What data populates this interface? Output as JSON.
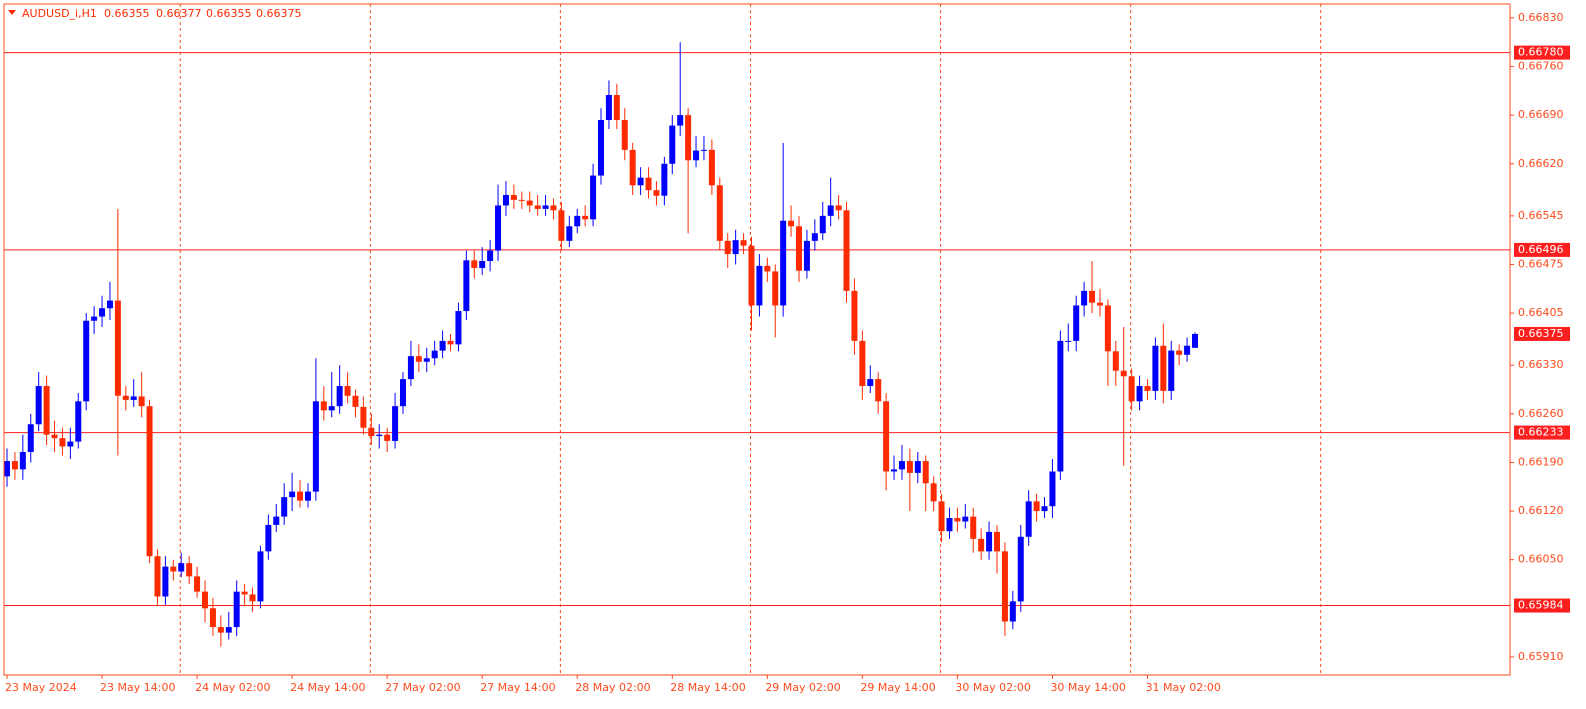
{
  "chart_data": {
    "type": "candlestick",
    "title": "AUDUSD_i,H1",
    "up_color": "#0000ff",
    "down_color": "#ff2a00",
    "frame_color": "#ff4a1a",
    "level_color": "#ff1e1e",
    "ylim": [
      0.65884,
      0.6685
    ],
    "yticks": [
      {
        "value": 0.6683,
        "label": "0.66830"
      },
      {
        "value": 0.6676,
        "label": "0.66760"
      },
      {
        "value": 0.6669,
        "label": "0.66690"
      },
      {
        "value": 0.6662,
        "label": "0.66620"
      },
      0.66545,
      0.66475,
      0.66405,
      {
        "value": 0.6633,
        "label": "0.66330"
      },
      {
        "value": 0.6626,
        "label": "0.66260"
      },
      {
        "value": 0.6619,
        "label": "0.66190"
      },
      {
        "value": 0.6612,
        "label": "0.66120"
      },
      {
        "value": 0.6605,
        "label": "0.66050"
      },
      {
        "value": 0.6591,
        "label": "0.65910"
      }
    ],
    "levels": [
      {
        "value": 0.6678,
        "label": "0.66780"
      },
      0.66496,
      0.66233,
      0.65984
    ],
    "xtick_labels": [
      "23 May 2024",
      "23 May 14:00",
      "24 May 02:00",
      "24 May 14:00",
      "27 May 02:00",
      "27 May 14:00",
      "28 May 02:00",
      "28 May 14:00",
      "29 May 02:00",
      "29 May 14:00",
      "30 May 02:00",
      "30 May 14:00",
      "31 May 02:00"
    ],
    "open": [
      0.6617,
      0.66192,
      0.6618,
      0.66205,
      0.66245,
      0.663,
      0.6623,
      0.66225,
      0.66213,
      0.6622,
      0.66278,
      0.66394,
      0.664,
      0.66412,
      0.66423,
      0.66286,
      0.6628,
      0.66285,
      0.66271,
      0.66055,
      0.65997,
      0.6604,
      0.66033,
      0.66045,
      0.66026,
      0.66004,
      0.6598,
      0.65953,
      0.65945,
      0.65953,
      0.66004,
      0.66,
      0.6599,
      0.66062,
      0.661,
      0.66112,
      0.6614,
      0.66148,
      0.66135,
      0.66148,
      0.66278,
      0.66265,
      0.66271,
      0.663,
      0.66286,
      0.6627,
      0.6624,
      0.66228,
      0.6623,
      0.66221,
      0.66271,
      0.6631,
      0.66343,
      0.66335,
      0.6634,
      0.66351,
      0.66365,
      0.6636,
      0.66408,
      0.66481,
      0.6647,
      0.6648,
      0.66495,
      0.6656,
      0.66575,
      0.66568,
      0.66567,
      0.6656,
      0.66555,
      0.6656,
      0.66553,
      0.66509,
      0.6653,
      0.66545,
      0.6654,
      0.66603,
      0.66683,
      0.66719,
      0.66683,
      0.6664,
      0.66589,
      0.666,
      0.66582,
      0.66574,
      0.6662,
      0.66675,
      0.6669,
      0.66625,
      0.66639,
      0.6664,
      0.66589,
      0.66509,
      0.6649,
      0.6651,
      0.66502,
      0.66416,
      0.66473,
      0.66465,
      0.66416,
      0.66538,
      0.6653,
      0.66466,
      0.66509,
      0.6652,
      0.66545,
      0.6656,
      0.66553,
      0.66437,
      0.66365,
      0.663,
      0.6631,
      0.66278,
      0.66177,
      0.6618,
      0.66192,
      0.66175,
      0.66192,
      0.6616,
      0.66134,
      0.66091,
      0.6611,
      0.66105,
      0.66112,
      0.6608,
      0.66062,
      0.6609,
      0.66062,
      0.65961,
      0.6599,
      0.66083,
      0.66134,
      0.6612,
      0.66127,
      0.66177,
      0.66365,
      0.66365,
      0.66416,
      0.66437,
      0.6642,
      0.66416,
      0.6635,
      0.66322,
      0.66314,
      0.66278,
      0.663,
      0.66293,
      0.66358,
      0.66293,
      0.66351,
      0.66345,
      0.66355
    ],
    "high": [
      0.6621,
      0.66205,
      0.6623,
      0.6626,
      0.6632,
      0.66315,
      0.6625,
      0.6624,
      0.6624,
      0.6629,
      0.66405,
      0.66415,
      0.6643,
      0.6645,
      0.66555,
      0.663,
      0.6631,
      0.6632,
      0.6628,
      0.66065,
      0.66055,
      0.6605,
      0.6606,
      0.66055,
      0.6604,
      0.6602,
      0.65995,
      0.6597,
      0.65975,
      0.6602,
      0.66015,
      0.6601,
      0.6607,
      0.66115,
      0.6613,
      0.6616,
      0.66175,
      0.66165,
      0.6616,
      0.6634,
      0.663,
      0.6632,
      0.6633,
      0.6632,
      0.66295,
      0.66285,
      0.6626,
      0.66245,
      0.6624,
      0.6629,
      0.6632,
      0.66365,
      0.6636,
      0.66355,
      0.66365,
      0.6638,
      0.66375,
      0.6642,
      0.66495,
      0.66495,
      0.665,
      0.6651,
      0.6659,
      0.66595,
      0.6659,
      0.6658,
      0.6658,
      0.66575,
      0.66575,
      0.6657,
      0.66565,
      0.66545,
      0.66555,
      0.6656,
      0.6662,
      0.667,
      0.6674,
      0.66735,
      0.667,
      0.6665,
      0.66615,
      0.66615,
      0.66595,
      0.6663,
      0.6669,
      0.66795,
      0.667,
      0.6666,
      0.6666,
      0.66655,
      0.666,
      0.6652,
      0.66525,
      0.6652,
      0.66515,
      0.6649,
      0.66485,
      0.66475,
      0.6665,
      0.6656,
      0.66545,
      0.66525,
      0.6654,
      0.66565,
      0.666,
      0.66575,
      0.66565,
      0.66455,
      0.6638,
      0.6633,
      0.6632,
      0.6629,
      0.662,
      0.66215,
      0.6621,
      0.66205,
      0.662,
      0.6617,
      0.66145,
      0.66125,
      0.66125,
      0.6613,
      0.66125,
      0.66095,
      0.66105,
      0.661,
      0.66075,
      0.66005,
      0.661,
      0.6615,
      0.66145,
      0.6614,
      0.66195,
      0.6638,
      0.6639,
      0.6643,
      0.6645,
      0.6648,
      0.6644,
      0.66425,
      0.66365,
      0.66385,
      0.66325,
      0.66315,
      0.6631,
      0.6637,
      0.6639,
      0.66365,
      0.6636,
      0.6637,
      0.66377
    ],
    "low": [
      0.66155,
      0.66165,
      0.66165,
      0.6619,
      0.66235,
      0.66215,
      0.66205,
      0.662,
      0.66195,
      0.6621,
      0.66265,
      0.66375,
      0.66385,
      0.66395,
      0.662,
      0.66265,
      0.6627,
      0.66255,
      0.66045,
      0.65985,
      0.65985,
      0.6602,
      0.66025,
      0.66015,
      0.65995,
      0.6596,
      0.6594,
      0.65925,
      0.65935,
      0.6594,
      0.65985,
      0.65975,
      0.6598,
      0.6605,
      0.6609,
      0.661,
      0.6612,
      0.66125,
      0.66125,
      0.66135,
      0.6625,
      0.66255,
      0.6626,
      0.66275,
      0.66255,
      0.6623,
      0.66215,
      0.6621,
      0.66205,
      0.6621,
      0.6626,
      0.663,
      0.6632,
      0.6632,
      0.6633,
      0.6634,
      0.6635,
      0.6635,
      0.66395,
      0.66455,
      0.6646,
      0.66465,
      0.6648,
      0.66545,
      0.66555,
      0.66555,
      0.6655,
      0.66545,
      0.66545,
      0.6654,
      0.66495,
      0.665,
      0.6652,
      0.6653,
      0.6653,
      0.6659,
      0.6667,
      0.6667,
      0.66625,
      0.66575,
      0.66575,
      0.6657,
      0.6656,
      0.6656,
      0.66605,
      0.6666,
      0.6652,
      0.66615,
      0.66625,
      0.66575,
      0.66495,
      0.6647,
      0.66475,
      0.6649,
      0.6638,
      0.664,
      0.6645,
      0.6637,
      0.664,
      0.66515,
      0.6645,
      0.66455,
      0.66495,
      0.6651,
      0.6653,
      0.6654,
      0.6642,
      0.66345,
      0.6628,
      0.6629,
      0.6626,
      0.6615,
      0.66165,
      0.66165,
      0.6612,
      0.6616,
      0.6612,
      0.6612,
      0.66075,
      0.6608,
      0.6609,
      0.66095,
      0.6606,
      0.6605,
      0.6605,
      0.6603,
      0.6594,
      0.6595,
      0.65975,
      0.6607,
      0.66105,
      0.6611,
      0.6611,
      0.66165,
      0.6635,
      0.6635,
      0.664,
      0.66405,
      0.664,
      0.663,
      0.663,
      0.66185,
      0.66265,
      0.66265,
      0.6628,
      0.6628,
      0.66275,
      0.6628,
      0.6633,
      0.66335,
      0.66355
    ],
    "close": [
      0.66192,
      0.6618,
      0.66205,
      0.66245,
      0.663,
      0.6623,
      0.66225,
      0.66213,
      0.6622,
      0.66278,
      0.66394,
      0.664,
      0.66412,
      0.66423,
      0.66286,
      0.6628,
      0.66285,
      0.66271,
      0.66055,
      0.65997,
      0.6604,
      0.66033,
      0.66045,
      0.66026,
      0.66004,
      0.6598,
      0.65953,
      0.65945,
      0.65953,
      0.66004,
      0.66,
      0.6599,
      0.66062,
      0.661,
      0.66112,
      0.6614,
      0.66148,
      0.66135,
      0.66148,
      0.66278,
      0.66265,
      0.66271,
      0.663,
      0.66286,
      0.6627,
      0.6624,
      0.66228,
      0.6623,
      0.66221,
      0.66271,
      0.6631,
      0.66343,
      0.66335,
      0.6634,
      0.66351,
      0.66365,
      0.6636,
      0.66408,
      0.66481,
      0.6647,
      0.6648,
      0.66495,
      0.6656,
      0.66575,
      0.66568,
      0.66567,
      0.6656,
      0.66555,
      0.6656,
      0.66553,
      0.66509,
      0.6653,
      0.66545,
      0.6654,
      0.66603,
      0.66683,
      0.66719,
      0.66683,
      0.6664,
      0.66589,
      0.666,
      0.66582,
      0.66574,
      0.6662,
      0.66675,
      0.6669,
      0.66625,
      0.66639,
      0.6664,
      0.66589,
      0.66509,
      0.6649,
      0.6651,
      0.66502,
      0.66416,
      0.66473,
      0.66465,
      0.66416,
      0.66538,
      0.6653,
      0.66466,
      0.66509,
      0.6652,
      0.66545,
      0.6656,
      0.66553,
      0.66437,
      0.66365,
      0.663,
      0.6631,
      0.66278,
      0.66177,
      0.6618,
      0.66192,
      0.66175,
      0.66192,
      0.6616,
      0.66134,
      0.66091,
      0.6611,
      0.66105,
      0.66112,
      0.6608,
      0.66062,
      0.6609,
      0.66062,
      0.65961,
      0.6599,
      0.66083,
      0.66134,
      0.6612,
      0.66127,
      0.66177,
      0.66365,
      0.66365,
      0.66416,
      0.66437,
      0.6642,
      0.66416,
      0.6635,
      0.66322,
      0.66314,
      0.66278,
      0.663,
      0.66293,
      0.66358,
      0.66293,
      0.66351,
      0.66345,
      0.66358,
      0.66375
    ]
  }
}
